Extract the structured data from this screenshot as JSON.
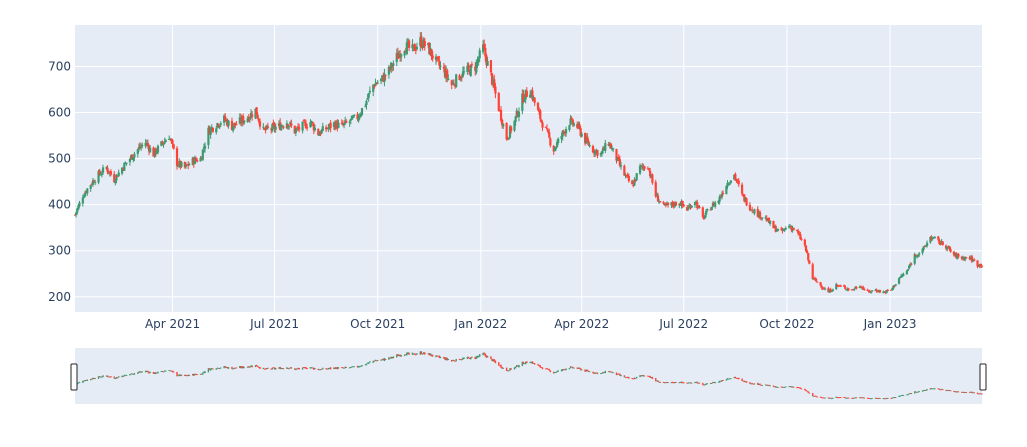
{
  "chart_data": {
    "type": "candlestick",
    "title": "",
    "xlabel": "",
    "ylabel": "",
    "x_range": [
      "2021-01-04",
      "2023-03-24"
    ],
    "ylim": [
      167,
      790
    ],
    "grid": true,
    "legend": "none",
    "y_ticks": [
      {
        "value": 200,
        "label": "200"
      },
      {
        "value": 300,
        "label": "300"
      },
      {
        "value": 400,
        "label": "400"
      },
      {
        "value": 500,
        "label": "500"
      },
      {
        "value": 600,
        "label": "600"
      },
      {
        "value": 700,
        "label": "700"
      }
    ],
    "x_ticks": [
      {
        "date": "2021-04-01",
        "label": "Apr 2021"
      },
      {
        "date": "2021-07-01",
        "label": "Jul 2021"
      },
      {
        "date": "2021-10-01",
        "label": "Oct 2021"
      },
      {
        "date": "2022-01-01",
        "label": "Jan 2022"
      },
      {
        "date": "2022-04-01",
        "label": "Apr 2022"
      },
      {
        "date": "2022-07-01",
        "label": "Jul 2022"
      },
      {
        "date": "2022-10-01",
        "label": "Oct 2022"
      },
      {
        "date": "2023-01-01",
        "label": "Jan 2023"
      }
    ],
    "close_series": [
      [
        "2021-01-04",
        378
      ],
      [
        "2021-01-11",
        420
      ],
      [
        "2021-01-18",
        445
      ],
      [
        "2021-01-25",
        465
      ],
      [
        "2021-02-01",
        480
      ],
      [
        "2021-02-08",
        455
      ],
      [
        "2021-02-15",
        480
      ],
      [
        "2021-02-22",
        500
      ],
      [
        "2021-03-01",
        520
      ],
      [
        "2021-03-08",
        535
      ],
      [
        "2021-03-15",
        510
      ],
      [
        "2021-03-22",
        530
      ],
      [
        "2021-03-29",
        550
      ],
      [
        "2021-04-05",
        490
      ],
      [
        "2021-04-12",
        480
      ],
      [
        "2021-04-19",
        495
      ],
      [
        "2021-04-26",
        500
      ],
      [
        "2021-05-03",
        560
      ],
      [
        "2021-05-10",
        575
      ],
      [
        "2021-05-17",
        585
      ],
      [
        "2021-05-24",
        570
      ],
      [
        "2021-05-31",
        580
      ],
      [
        "2021-06-07",
        590
      ],
      [
        "2021-06-14",
        605
      ],
      [
        "2021-06-21",
        560
      ],
      [
        "2021-06-28",
        565
      ],
      [
        "2021-07-05",
        570
      ],
      [
        "2021-07-12",
        580
      ],
      [
        "2021-07-19",
        560
      ],
      [
        "2021-07-26",
        570
      ],
      [
        "2021-08-02",
        580
      ],
      [
        "2021-08-09",
        555
      ],
      [
        "2021-08-16",
        565
      ],
      [
        "2021-08-23",
        575
      ],
      [
        "2021-08-30",
        570
      ],
      [
        "2021-09-06",
        580
      ],
      [
        "2021-09-13",
        590
      ],
      [
        "2021-09-20",
        620
      ],
      [
        "2021-09-27",
        660
      ],
      [
        "2021-10-04",
        670
      ],
      [
        "2021-10-11",
        690
      ],
      [
        "2021-10-18",
        720
      ],
      [
        "2021-10-25",
        745
      ],
      [
        "2021-11-01",
        735
      ],
      [
        "2021-11-08",
        755
      ],
      [
        "2021-11-15",
        740
      ],
      [
        "2021-11-22",
        710
      ],
      [
        "2021-11-29",
        690
      ],
      [
        "2021-12-06",
        660
      ],
      [
        "2021-12-13",
        680
      ],
      [
        "2021-12-20",
        690
      ],
      [
        "2021-12-27",
        700
      ],
      [
        "2022-01-03",
        740
      ],
      [
        "2022-01-10",
        680
      ],
      [
        "2022-01-17",
        610
      ],
      [
        "2022-01-24",
        545
      ],
      [
        "2022-01-31",
        580
      ],
      [
        "2022-02-07",
        630
      ],
      [
        "2022-02-14",
        650
      ],
      [
        "2022-02-21",
        600
      ],
      [
        "2022-02-28",
        560
      ],
      [
        "2022-03-07",
        520
      ],
      [
        "2022-03-14",
        550
      ],
      [
        "2022-03-21",
        580
      ],
      [
        "2022-03-28",
        570
      ],
      [
        "2022-04-04",
        540
      ],
      [
        "2022-04-11",
        520
      ],
      [
        "2022-04-18",
        510
      ],
      [
        "2022-04-25",
        535
      ],
      [
        "2022-05-02",
        500
      ],
      [
        "2022-05-09",
        465
      ],
      [
        "2022-05-16",
        440
      ],
      [
        "2022-05-23",
        480
      ],
      [
        "2022-05-30",
        485
      ],
      [
        "2022-06-06",
        420
      ],
      [
        "2022-06-13",
        395
      ],
      [
        "2022-06-20",
        400
      ],
      [
        "2022-06-27",
        405
      ],
      [
        "2022-07-04",
        390
      ],
      [
        "2022-07-11",
        410
      ],
      [
        "2022-07-18",
        370
      ],
      [
        "2022-07-25",
        395
      ],
      [
        "2022-08-01",
        410
      ],
      [
        "2022-08-08",
        445
      ],
      [
        "2022-08-15",
        465
      ],
      [
        "2022-08-22",
        420
      ],
      [
        "2022-08-29",
        395
      ],
      [
        "2022-09-05",
        380
      ],
      [
        "2022-09-12",
        370
      ],
      [
        "2022-09-19",
        350
      ],
      [
        "2022-09-26",
        340
      ],
      [
        "2022-10-03",
        355
      ],
      [
        "2022-10-10",
        340
      ],
      [
        "2022-10-17",
        310
      ],
      [
        "2022-10-24",
        240
      ],
      [
        "2022-10-31",
        225
      ],
      [
        "2022-11-07",
        210
      ],
      [
        "2022-11-14",
        225
      ],
      [
        "2022-11-21",
        220
      ],
      [
        "2022-11-28",
        215
      ],
      [
        "2022-12-05",
        225
      ],
      [
        "2022-12-12",
        210
      ],
      [
        "2022-12-19",
        215
      ],
      [
        "2022-12-26",
        210
      ],
      [
        "2023-01-02",
        215
      ],
      [
        "2023-01-09",
        240
      ],
      [
        "2023-01-16",
        255
      ],
      [
        "2023-01-23",
        290
      ],
      [
        "2023-01-30",
        300
      ],
      [
        "2023-02-06",
        330
      ],
      [
        "2023-02-13",
        320
      ],
      [
        "2023-02-20",
        310
      ],
      [
        "2023-02-27",
        290
      ],
      [
        "2023-03-06",
        285
      ],
      [
        "2023-03-13",
        285
      ],
      [
        "2023-03-20",
        270
      ]
    ]
  },
  "colors": {
    "increasing": "#3d9970",
    "decreasing": "#ff4136",
    "plot_bg": "#e5ecf6",
    "grid": "#ffffff",
    "tick_text": "#2a3f5f"
  }
}
